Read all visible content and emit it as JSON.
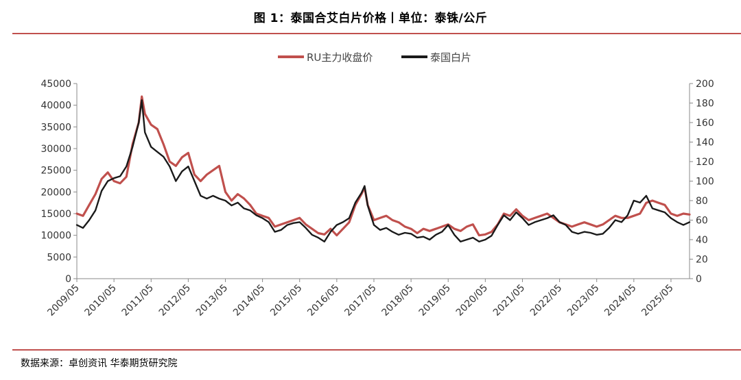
{
  "title": "图 1：泰国合艾白片价格丨单位：泰铢/公斤",
  "source": "数据来源：卓创资讯  华泰期货研究院",
  "chart_data": {
    "type": "line",
    "legend": [
      "RU主力收盘价",
      "泰国白片"
    ],
    "legend_position": "top-center",
    "grid": false,
    "left_axis": {
      "min": 0,
      "max": 45000,
      "step": 5000,
      "ticks": [
        "0",
        "5000",
        "10000",
        "15000",
        "20000",
        "25000",
        "30000",
        "35000",
        "40000",
        "45000"
      ]
    },
    "right_axis": {
      "min": 0,
      "max": 200,
      "step": 20,
      "ticks": [
        "0",
        "20",
        "40",
        "60",
        "80",
        "100",
        "120",
        "140",
        "160",
        "180",
        "200"
      ]
    },
    "x_range": [
      "2009/05",
      "2025/11"
    ],
    "x_ticks": [
      "2009/05",
      "2010/05",
      "2011/05",
      "2012/05",
      "2013/05",
      "2014/05",
      "2015/05",
      "2016/05",
      "2017/05",
      "2018/05",
      "2019/05",
      "2020/05",
      "2021/05",
      "2022/05",
      "2023/05",
      "2024/05",
      "2025/05"
    ],
    "series": [
      {
        "name": "RU主力收盘价",
        "axis": "left",
        "color": "#c0504d",
        "points": [
          [
            "2009/05",
            15000
          ],
          [
            "2009/07",
            14500
          ],
          [
            "2009/09",
            17000
          ],
          [
            "2009/11",
            19500
          ],
          [
            "2010/01",
            23000
          ],
          [
            "2010/03",
            24500
          ],
          [
            "2010/05",
            22500
          ],
          [
            "2010/07",
            22000
          ],
          [
            "2010/09",
            23500
          ],
          [
            "2010/11",
            31000
          ],
          [
            "2011/01",
            36000
          ],
          [
            "2011/02",
            42000
          ],
          [
            "2011/03",
            38000
          ],
          [
            "2011/05",
            35500
          ],
          [
            "2011/07",
            34500
          ],
          [
            "2011/09",
            31000
          ],
          [
            "2011/11",
            27000
          ],
          [
            "2012/01",
            26000
          ],
          [
            "2012/03",
            28000
          ],
          [
            "2012/05",
            29000
          ],
          [
            "2012/07",
            24000
          ],
          [
            "2012/09",
            22500
          ],
          [
            "2012/11",
            24000
          ],
          [
            "2013/01",
            25000
          ],
          [
            "2013/03",
            26000
          ],
          [
            "2013/05",
            20000
          ],
          [
            "2013/07",
            18000
          ],
          [
            "2013/09",
            19500
          ],
          [
            "2013/11",
            18500
          ],
          [
            "2014/01",
            17000
          ],
          [
            "2014/03",
            15000
          ],
          [
            "2014/05",
            14500
          ],
          [
            "2014/07",
            14000
          ],
          [
            "2014/09",
            12000
          ],
          [
            "2014/11",
            12500
          ],
          [
            "2015/01",
            13000
          ],
          [
            "2015/03",
            13500
          ],
          [
            "2015/05",
            14000
          ],
          [
            "2015/07",
            12500
          ],
          [
            "2015/09",
            11500
          ],
          [
            "2015/11",
            10500
          ],
          [
            "2016/01",
            10200
          ],
          [
            "2016/03",
            11500
          ],
          [
            "2016/05",
            10000
          ],
          [
            "2016/07",
            11500
          ],
          [
            "2016/09",
            13000
          ],
          [
            "2016/11",
            17000
          ],
          [
            "2017/01",
            19500
          ],
          [
            "2017/02",
            21000
          ],
          [
            "2017/03",
            17000
          ],
          [
            "2017/05",
            13500
          ],
          [
            "2017/07",
            14000
          ],
          [
            "2017/09",
            14500
          ],
          [
            "2017/11",
            13500
          ],
          [
            "2018/01",
            13000
          ],
          [
            "2018/03",
            12000
          ],
          [
            "2018/05",
            11500
          ],
          [
            "2018/07",
            10500
          ],
          [
            "2018/09",
            11500
          ],
          [
            "2018/11",
            11000
          ],
          [
            "2019/01",
            11500
          ],
          [
            "2019/03",
            12000
          ],
          [
            "2019/05",
            12500
          ],
          [
            "2019/07",
            11500
          ],
          [
            "2019/09",
            11000
          ],
          [
            "2019/11",
            12000
          ],
          [
            "2020/01",
            12500
          ],
          [
            "2020/03",
            10000
          ],
          [
            "2020/05",
            10200
          ],
          [
            "2020/07",
            10800
          ],
          [
            "2020/09",
            12500
          ],
          [
            "2020/11",
            15000
          ],
          [
            "2021/01",
            14500
          ],
          [
            "2021/03",
            16000
          ],
          [
            "2021/05",
            14500
          ],
          [
            "2021/07",
            13500
          ],
          [
            "2021/09",
            14000
          ],
          [
            "2021/11",
            14500
          ],
          [
            "2022/01",
            15000
          ],
          [
            "2022/03",
            14000
          ],
          [
            "2022/05",
            13000
          ],
          [
            "2022/07",
            12500
          ],
          [
            "2022/09",
            12000
          ],
          [
            "2022/11",
            12500
          ],
          [
            "2023/01",
            13000
          ],
          [
            "2023/03",
            12500
          ],
          [
            "2023/05",
            12000
          ],
          [
            "2023/07",
            12500
          ],
          [
            "2023/09",
            13500
          ],
          [
            "2023/11",
            14500
          ],
          [
            "2024/01",
            14000
          ],
          [
            "2024/03",
            14000
          ],
          [
            "2024/05",
            14500
          ],
          [
            "2024/07",
            15000
          ],
          [
            "2024/09",
            17500
          ],
          [
            "2024/11",
            18000
          ],
          [
            "2025/01",
            17500
          ],
          [
            "2025/03",
            17000
          ],
          [
            "2025/05",
            15000
          ],
          [
            "2025/07",
            14500
          ],
          [
            "2025/09",
            15000
          ],
          [
            "2025/11",
            14800
          ]
        ]
      },
      {
        "name": "泰国白片",
        "axis": "right",
        "color": "#1a1a1a",
        "points": [
          [
            "2009/05",
            55
          ],
          [
            "2009/07",
            52
          ],
          [
            "2009/09",
            60
          ],
          [
            "2009/11",
            70
          ],
          [
            "2010/01",
            90
          ],
          [
            "2010/03",
            100
          ],
          [
            "2010/05",
            103
          ],
          [
            "2010/07",
            105
          ],
          [
            "2010/09",
            115
          ],
          [
            "2010/11",
            135
          ],
          [
            "2011/01",
            160
          ],
          [
            "2011/02",
            183
          ],
          [
            "2011/03",
            150
          ],
          [
            "2011/05",
            135
          ],
          [
            "2011/07",
            130
          ],
          [
            "2011/09",
            125
          ],
          [
            "2011/11",
            115
          ],
          [
            "2012/01",
            100
          ],
          [
            "2012/03",
            110
          ],
          [
            "2012/05",
            115
          ],
          [
            "2012/07",
            100
          ],
          [
            "2012/09",
            85
          ],
          [
            "2012/11",
            82
          ],
          [
            "2013/01",
            85
          ],
          [
            "2013/03",
            82
          ],
          [
            "2013/05",
            80
          ],
          [
            "2013/07",
            75
          ],
          [
            "2013/09",
            78
          ],
          [
            "2013/11",
            72
          ],
          [
            "2014/01",
            70
          ],
          [
            "2014/03",
            65
          ],
          [
            "2014/05",
            62
          ],
          [
            "2014/07",
            58
          ],
          [
            "2014/09",
            48
          ],
          [
            "2014/11",
            50
          ],
          [
            "2015/01",
            55
          ],
          [
            "2015/03",
            57
          ],
          [
            "2015/05",
            58
          ],
          [
            "2015/07",
            52
          ],
          [
            "2015/09",
            45
          ],
          [
            "2015/11",
            42
          ],
          [
            "2016/01",
            38
          ],
          [
            "2016/03",
            48
          ],
          [
            "2016/05",
            55
          ],
          [
            "2016/07",
            58
          ],
          [
            "2016/09",
            62
          ],
          [
            "2016/11",
            78
          ],
          [
            "2017/01",
            88
          ],
          [
            "2017/02",
            95
          ],
          [
            "2017/03",
            75
          ],
          [
            "2017/05",
            55
          ],
          [
            "2017/07",
            50
          ],
          [
            "2017/09",
            52
          ],
          [
            "2017/11",
            48
          ],
          [
            "2018/01",
            45
          ],
          [
            "2018/03",
            47
          ],
          [
            "2018/05",
            46
          ],
          [
            "2018/07",
            42
          ],
          [
            "2018/09",
            43
          ],
          [
            "2018/11",
            40
          ],
          [
            "2019/01",
            45
          ],
          [
            "2019/03",
            48
          ],
          [
            "2019/05",
            55
          ],
          [
            "2019/07",
            45
          ],
          [
            "2019/09",
            38
          ],
          [
            "2019/11",
            40
          ],
          [
            "2020/01",
            42
          ],
          [
            "2020/03",
            38
          ],
          [
            "2020/05",
            40
          ],
          [
            "2020/07",
            44
          ],
          [
            "2020/09",
            55
          ],
          [
            "2020/11",
            65
          ],
          [
            "2021/01",
            60
          ],
          [
            "2021/03",
            68
          ],
          [
            "2021/05",
            62
          ],
          [
            "2021/07",
            55
          ],
          [
            "2021/09",
            58
          ],
          [
            "2021/11",
            60
          ],
          [
            "2022/01",
            62
          ],
          [
            "2022/03",
            65
          ],
          [
            "2022/05",
            58
          ],
          [
            "2022/07",
            55
          ],
          [
            "2022/09",
            48
          ],
          [
            "2022/11",
            46
          ],
          [
            "2023/01",
            48
          ],
          [
            "2023/03",
            47
          ],
          [
            "2023/05",
            45
          ],
          [
            "2023/07",
            46
          ],
          [
            "2023/09",
            52
          ],
          [
            "2023/11",
            60
          ],
          [
            "2024/01",
            58
          ],
          [
            "2024/03",
            65
          ],
          [
            "2024/05",
            80
          ],
          [
            "2024/07",
            78
          ],
          [
            "2024/09",
            85
          ],
          [
            "2024/11",
            72
          ],
          [
            "2025/01",
            70
          ],
          [
            "2025/03",
            68
          ],
          [
            "2025/05",
            62
          ],
          [
            "2025/07",
            58
          ],
          [
            "2025/09",
            55
          ],
          [
            "2025/11",
            58
          ]
        ]
      }
    ]
  }
}
